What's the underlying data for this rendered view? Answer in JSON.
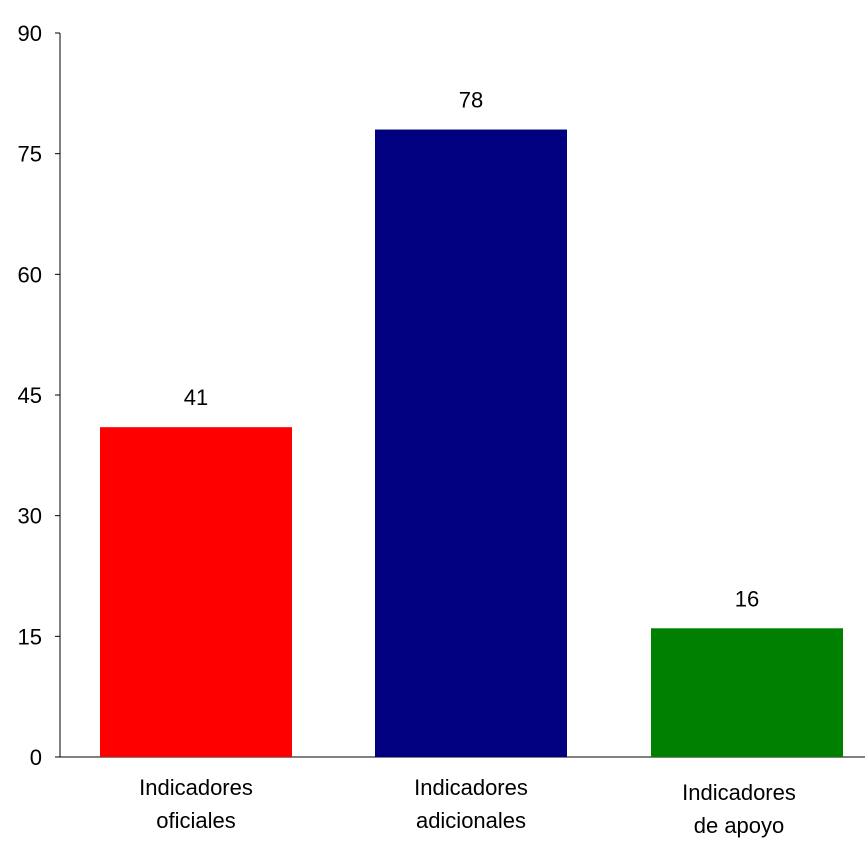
{
  "chart_data": {
    "type": "bar",
    "categories": [
      [
        "Indicadores",
        "oficiales"
      ],
      [
        "Indicadores",
        "adicionales"
      ],
      [
        "Indicadores",
        "de apoyo"
      ]
    ],
    "values": [
      41,
      78,
      16
    ],
    "data_labels": [
      "41",
      "78",
      "16"
    ],
    "bar_colors": [
      "#ff0000",
      "#000080",
      "#008000"
    ],
    "ylim": [
      0,
      90
    ],
    "yticks": [
      0,
      15,
      30,
      45,
      60,
      75,
      90
    ],
    "ytick_labels": [
      "0",
      "15",
      "30",
      "45",
      "60",
      "75",
      "90"
    ],
    "title": "",
    "xlabel": "",
    "ylabel": "",
    "grid": false,
    "legend": "none"
  }
}
